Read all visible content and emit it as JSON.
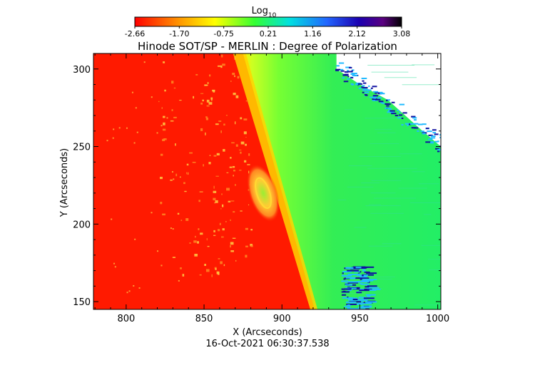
{
  "colorbar": {
    "label": "Log",
    "label_sub": "10",
    "ticks": [
      "-2.66",
      "-1.70",
      "-0.75",
      "0.21",
      "1.16",
      "2.12",
      "3.08"
    ],
    "range": [
      -2.66,
      3.08
    ]
  },
  "chart_data": {
    "type": "heatmap",
    "title": "Hinode SOT/SP - MERLIN : Degree of Polarization",
    "xlabel": "X (Arcseconds)",
    "ylabel": "Y (Arcseconds)",
    "xlim": [
      779,
      1002
    ],
    "ylim": [
      145,
      310
    ],
    "x_ticks": [
      800,
      850,
      900,
      950,
      1000
    ],
    "y_ticks": [
      150,
      200,
      250,
      300
    ],
    "colorbar_range": [
      -2.66,
      3.08
    ],
    "limb_x_at_y": [
      [
        310,
        875
      ],
      [
        145,
        921
      ]
    ],
    "active_region_center": [
      888,
      220
    ],
    "timestamp": "16-Oct-2021 06:30:37.538"
  },
  "colors": {
    "disk": "#ff1a00",
    "limb": "#ffd500",
    "offlimb_inner": "#b8ff00",
    "offlimb": "#22ee55",
    "far": "#22ee66",
    "blue": "#1010a0",
    "cyan": "#22bbff"
  }
}
